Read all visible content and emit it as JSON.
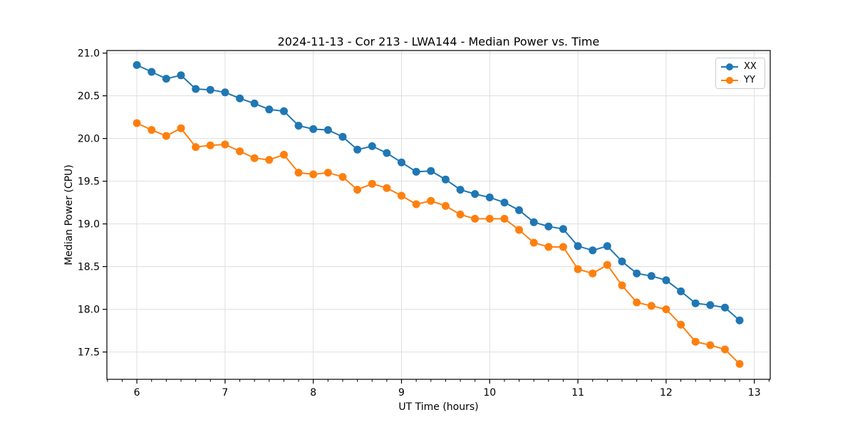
{
  "chart_data": {
    "type": "line",
    "title": "2024-11-13 - Cor 213 - LWA144 - Median Power vs. Time",
    "xlabel": "UT Time (hours)",
    "ylabel": "Median Power (CPU)",
    "xlim": [
      5.66,
      13.18
    ],
    "ylim": [
      17.18,
      21.03
    ],
    "xticks": [
      6,
      7,
      8,
      9,
      10,
      11,
      12,
      13
    ],
    "yticks": [
      17.5,
      18.0,
      18.5,
      19.0,
      19.5,
      20.0,
      20.5,
      21.0
    ],
    "minor_x_step": 0.16667,
    "grid": true,
    "legend_position": "top-right",
    "marker": "circle",
    "x": [
      6.0,
      6.167,
      6.333,
      6.5,
      6.667,
      6.833,
      7.0,
      7.167,
      7.333,
      7.5,
      7.667,
      7.833,
      8.0,
      8.167,
      8.333,
      8.5,
      8.667,
      8.833,
      9.0,
      9.167,
      9.333,
      9.5,
      9.667,
      9.833,
      10.0,
      10.167,
      10.333,
      10.5,
      10.667,
      10.833,
      11.0,
      11.167,
      11.333,
      11.5,
      11.667,
      11.833,
      12.0,
      12.167,
      12.333,
      12.5,
      12.667,
      12.833
    ],
    "series": [
      {
        "name": "XX",
        "color": "#1f77b4",
        "values": [
          20.86,
          20.78,
          20.7,
          20.74,
          20.58,
          20.57,
          20.54,
          20.47,
          20.41,
          20.34,
          20.32,
          20.15,
          20.11,
          20.1,
          20.02,
          19.87,
          19.91,
          19.83,
          19.72,
          19.61,
          19.62,
          19.52,
          19.4,
          19.35,
          19.31,
          19.25,
          19.16,
          19.02,
          18.97,
          18.94,
          18.74,
          18.69,
          18.74,
          18.56,
          18.42,
          18.39,
          18.34,
          18.21,
          18.07,
          18.05,
          18.02,
          17.87
        ]
      },
      {
        "name": "YY",
        "color": "#ff7f0e",
        "values": [
          20.18,
          20.1,
          20.03,
          20.12,
          19.9,
          19.92,
          19.93,
          19.85,
          19.77,
          19.75,
          19.81,
          19.6,
          19.58,
          19.6,
          19.55,
          19.4,
          19.47,
          19.42,
          19.33,
          19.23,
          19.27,
          19.21,
          19.11,
          19.06,
          19.06,
          19.06,
          18.93,
          18.78,
          18.73,
          18.73,
          18.47,
          18.42,
          18.52,
          18.28,
          18.08,
          18.04,
          18.0,
          17.82,
          17.62,
          17.58,
          17.53,
          17.36
        ]
      }
    ]
  }
}
